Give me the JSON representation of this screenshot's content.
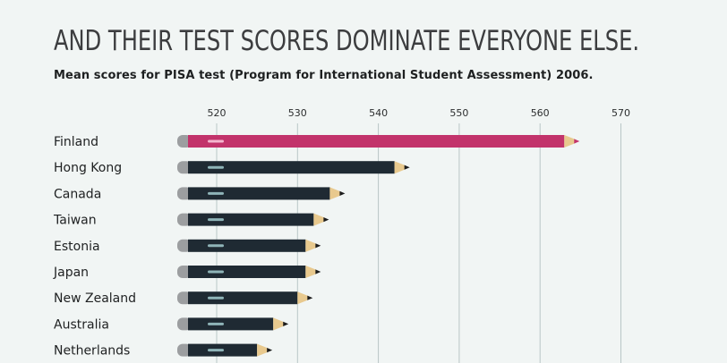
{
  "headline": "AND THEIR TEST SCORES DOMINATE EVERYONE ELSE.",
  "subtitle": "Mean scores for PISA test (Program for International Student Assessment) 2006.",
  "colors": {
    "highlight": "#c2336b",
    "default_pencil": "#1f2a33",
    "eraser": "#9c9ea0",
    "gridline": "#b9c6c6",
    "wood": "#e8c98e",
    "lead": "#1c1c1c"
  },
  "chart_data": {
    "type": "bar",
    "orientation": "horizontal",
    "title": "Mean scores for PISA test (Program for International Student Assessment) 2006.",
    "xlabel": "",
    "ylabel": "",
    "xlim": [
      513,
      572
    ],
    "xticks": [
      520,
      530,
      540,
      550,
      560,
      570
    ],
    "grid": true,
    "categories": [
      "Finland",
      "Hong Kong",
      "Canada",
      "Taiwan",
      "Estonia",
      "Japan",
      "New Zealand",
      "Australia",
      "Netherlands"
    ],
    "values": [
      563,
      542,
      534,
      532,
      531,
      531,
      530,
      527,
      525
    ],
    "highlight_category": "Finland"
  }
}
